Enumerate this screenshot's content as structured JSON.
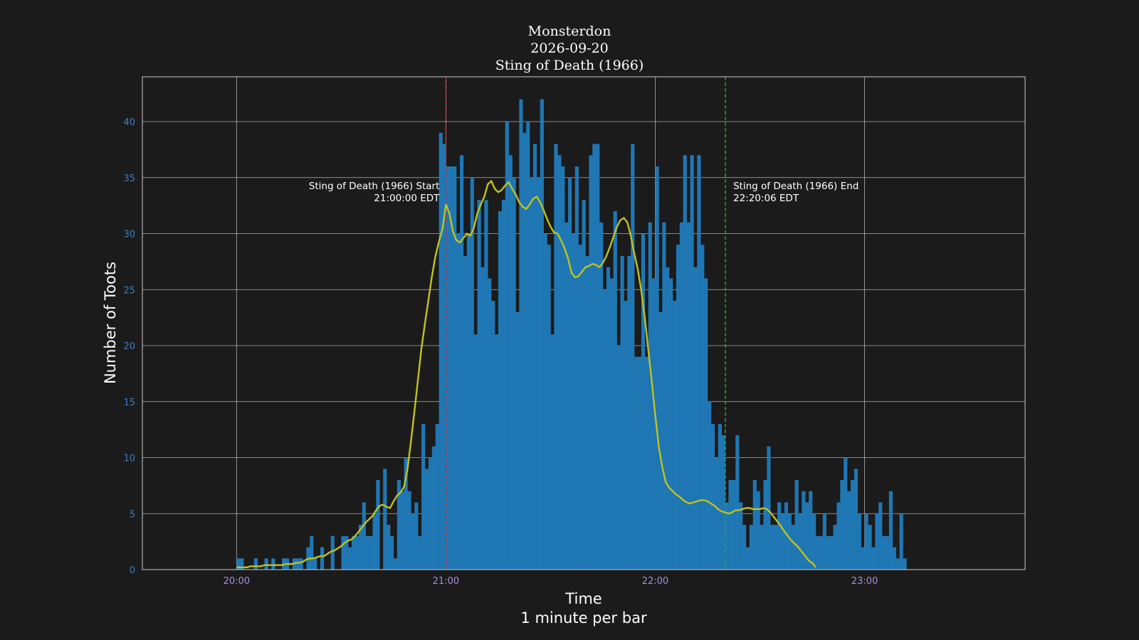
{
  "title_lines": [
    "Monsterdon",
    "2026-09-20",
    "Sting of Death (1966)"
  ],
  "chart_data": {
    "type": "bar",
    "title": "Monsterdon 2026-09-20 Sting of Death (1966)",
    "xlabel": "Time",
    "xlabel_sub": "1 minute per bar",
    "ylabel": "Number of Toots",
    "x_start": "20:00",
    "x_range_minutes": [
      -27,
      226
    ],
    "ylim": [
      0,
      44
    ],
    "yticks": [
      0,
      5,
      10,
      15,
      20,
      25,
      30,
      35,
      40
    ],
    "xticks": [
      {
        "minute": 0,
        "label": "20:00"
      },
      {
        "minute": 60,
        "label": "21:00"
      },
      {
        "minute": 120,
        "label": "22:00"
      },
      {
        "minute": 180,
        "label": "23:00"
      }
    ],
    "grid": true,
    "bar_color": "#1f77b4",
    "smooth_color": "#c2c21c",
    "values": [
      1,
      1,
      0,
      0,
      0,
      1,
      0,
      0,
      1,
      0,
      1,
      0,
      0,
      1,
      1,
      0,
      1,
      1,
      1,
      0,
      2,
      3,
      1,
      0,
      2,
      0,
      0,
      3,
      0,
      0,
      3,
      3,
      2,
      3,
      3,
      4,
      6,
      3,
      3,
      5,
      8,
      0,
      9,
      4,
      3,
      1,
      8,
      7,
      10,
      7,
      5,
      6,
      3,
      13,
      9,
      10,
      11,
      13,
      39,
      38,
      36,
      36,
      36,
      30,
      37,
      28,
      30,
      35,
      21,
      33,
      27,
      33,
      26,
      24,
      21,
      32,
      33,
      40,
      37,
      35,
      23,
      42,
      39,
      40,
      35,
      38,
      35,
      42,
      30,
      29,
      21,
      38,
      37,
      36,
      31,
      35,
      30,
      36,
      29,
      33,
      28,
      37,
      38,
      38,
      31,
      25,
      27,
      26,
      32,
      20,
      28,
      24,
      28,
      38,
      19,
      19,
      30,
      19,
      31,
      26,
      36,
      23,
      31,
      27,
      26,
      24,
      29,
      31,
      37,
      31,
      37,
      27,
      37,
      29,
      26,
      15,
      13,
      10,
      13,
      12,
      6,
      8,
      8,
      12,
      6,
      4,
      2,
      4,
      8,
      7,
      4,
      8,
      11,
      4,
      4,
      6,
      5,
      6,
      5,
      4,
      8,
      5,
      7,
      6,
      7,
      5,
      3,
      3,
      5,
      3,
      3,
      4,
      6,
      8,
      10,
      7,
      8,
      9,
      5,
      2,
      5,
      4,
      2,
      5,
      6,
      3,
      3,
      7,
      2,
      1,
      5,
      1
    ],
    "smooth": [
      0.2,
      0.2,
      0.2,
      0.2,
      0.3,
      0.3,
      0.3,
      0.3,
      0.4,
      0.4,
      0.4,
      0.4,
      0.4,
      0.4,
      0.5,
      0.5,
      0.5,
      0.6,
      0.6,
      0.7,
      0.9,
      1.0,
      1.0,
      1.1,
      1.2,
      1.2,
      1.4,
      1.6,
      1.7,
      1.9,
      2.1,
      2.4,
      2.6,
      2.7,
      3.0,
      3.4,
      3.8,
      4.2,
      4.5,
      4.8,
      5.3,
      5.7,
      5.8,
      5.6,
      5.5,
      6.1,
      6.6,
      6.9,
      7.4,
      9.0,
      11.5,
      14.2,
      17.0,
      19.8,
      22.0,
      24.1,
      26.2,
      28.0,
      29.3,
      30.4,
      32.6,
      31.8,
      30.2,
      29.4,
      29.2,
      29.6,
      30.0,
      29.8,
      30.5,
      31.8,
      32.6,
      33.3,
      34.4,
      34.7,
      34.0,
      33.7,
      33.9,
      34.3,
      34.6,
      34.0,
      33.5,
      32.8,
      32.4,
      32.2,
      32.6,
      33.1,
      33.3,
      32.8,
      32.1,
      31.3,
      30.6,
      30.1,
      30.0,
      29.4,
      28.7,
      27.8,
      26.5,
      26.1,
      26.2,
      26.6,
      27.0,
      27.1,
      27.3,
      27.2,
      27.0,
      27.4,
      28.0,
      28.8,
      29.7,
      30.6,
      31.2,
      31.4,
      31.0,
      29.8,
      28.2,
      26.8,
      24.9,
      22.5,
      19.6,
      16.8,
      13.8,
      11.0,
      9.2,
      7.8,
      7.3,
      7.0,
      6.7,
      6.5,
      6.2,
      6.0,
      5.9,
      6.0,
      6.1,
      6.2,
      6.2,
      6.1,
      5.9,
      5.7,
      5.4,
      5.2,
      5.1,
      5.0,
      5.1,
      5.3,
      5.3,
      5.4,
      5.5,
      5.5,
      5.4,
      5.4,
      5.4,
      5.5,
      5.4,
      5.1,
      4.7,
      4.3,
      3.9,
      3.4,
      3.0,
      2.6,
      2.3,
      2.0,
      1.6,
      1.2,
      0.8,
      0.6,
      0.2
    ],
    "markers": [
      {
        "minute": 60,
        "color": "#d62728",
        "label_line1": "Sting of Death (1966) Start",
        "label_line2": "21:00:00 EDT",
        "align": "right"
      },
      {
        "minute": 140.1,
        "color": "#2ca02c",
        "label_line1": "Sting of Death (1966) End",
        "label_line2": "22:20:06 EDT",
        "align": "left"
      }
    ]
  }
}
